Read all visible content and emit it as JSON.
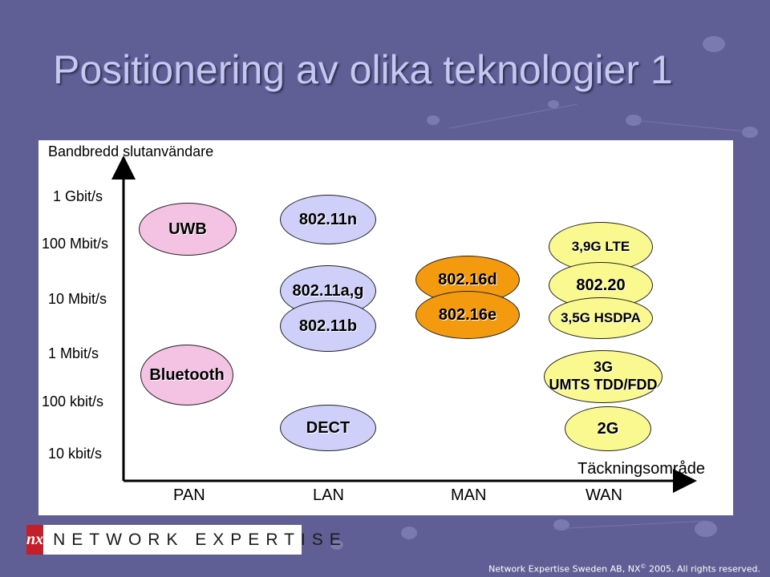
{
  "slide": {
    "title": "Positionering av olika teknologier 1"
  },
  "diagram": {
    "y_axis_title": "Bandbredd slutanvändare",
    "x_axis_title": "Täckningsområde",
    "y_labels": [
      "1 Gbit/s",
      "100 Mbit/s",
      "10 Mbit/s",
      "1 Mbit/s",
      "100 kbit/s",
      "10 kbit/s"
    ],
    "x_labels": [
      "PAN",
      "LAN",
      "MAN",
      "WAN"
    ],
    "technologies": [
      {
        "label": "UWB",
        "color": "#f4c2e3"
      },
      {
        "label": "Bluetooth",
        "color": "#f4c2e3"
      },
      {
        "label": "802.11n",
        "color": "#cfd0fa"
      },
      {
        "label": "802.11a,g",
        "color": "#cfd0fa"
      },
      {
        "label": "802.11b",
        "color": "#cfd0fa"
      },
      {
        "label": "DECT",
        "color": "#cfd0fa"
      },
      {
        "label": "802.16d",
        "color": "#f39a0e"
      },
      {
        "label": "802.16e",
        "color": "#f39a0e"
      },
      {
        "label": "3,9G LTE",
        "color": "#faf98f"
      },
      {
        "label": "802.20",
        "color": "#faf98f"
      },
      {
        "label": "3,5G HSDPA",
        "color": "#faf98f"
      },
      {
        "label": "3G",
        "label2": "UMTS TDD/FDD",
        "color": "#faf98f"
      },
      {
        "label": "2G",
        "color": "#faf98f"
      }
    ]
  },
  "footer": {
    "logo_mark": "nx",
    "logo_text": "NETWORK EXPERTISE",
    "copyright_pre": "Network Expertise Sweden AB, NX",
    "copyright_sup": "©",
    "copyright_post": " 2005. All rights reserved."
  },
  "colors": {
    "background": "#5f5f96",
    "title": "#c6c8f0",
    "pan": "#f4c2e3",
    "lan": "#cfd0fa",
    "man": "#f39a0e",
    "wan": "#faf98f",
    "logo_red": "#c41e2a"
  }
}
